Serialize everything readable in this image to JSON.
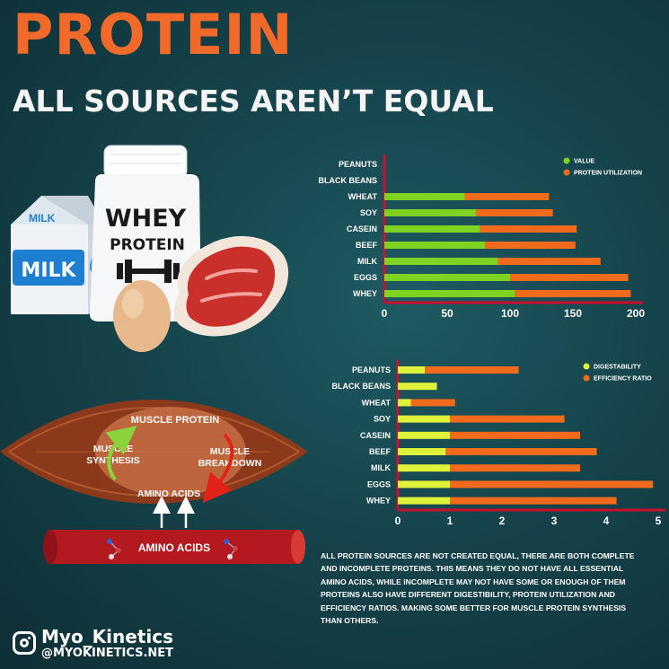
{
  "header": {
    "title": "PROTEIN",
    "subtitle": "ALL SOURCES AREN’T EQUAL"
  },
  "illustration": {
    "milk_carton_top_label": "MILK",
    "milk_carton_label": "MILK",
    "jar_text_line1": "WHEY",
    "jar_text_line2": "PROTEIN",
    "muscle_protein": "MUSCLE PROTEIN",
    "muscle_synthesis_line1": "MUSCLE",
    "muscle_synthesis_line2": "SYNTHESIS",
    "muscle_breakdown_line1": "MUSCLE",
    "muscle_breakdown_line2": "BREAKDOWN",
    "amino_acids_muscle": "AMINO ACIDS",
    "amino_acids_vessel": "AMINO ACIDS"
  },
  "description": "ALL PROTEIN SOURCES ARE NOT CREATED EQUAL, THERE ARE BOTH COMPLETE\nAND INCOMPLETE PROTEINS. THIS MEANS THEY DO NOT HAVE ALL ESSENTIAL\nAMINO ACIDS, WHILE INCOMPLETE MAY NOT HAVE SOME OR ENOUGH OF  THEM\nPROTEINS ALSO HAVE DIFFERENT DIGESTIBILITY, PROTEIN UTILIZATION  AND\nEFFICIENCY RATIOS. MAKING SOME BETTER FOR MUSCLE PROTEIN  SYNTHESIS\nTHAN OTHERS.",
  "brand": {
    "name": "Myo_Kinetics",
    "handle": "@MYOKINETICS.NET"
  },
  "colors": {
    "title_orange": "#f26a2a",
    "bar_green": "#7ed321",
    "bar_yellow": "#dff23a",
    "bar_orange": "#f26a1b",
    "axis_red": "#c8102e",
    "background": "#16444c"
  },
  "chart_data": [
    {
      "type": "bar",
      "orientation": "horizontal",
      "stacked": true,
      "categories": [
        "PEANUTS",
        "BLACK BEANS",
        "WHEAT",
        "SOY",
        "CASEIN",
        "BEEF",
        "MILK",
        "EGGS",
        "WHEY"
      ],
      "series": [
        {
          "name": "VALUE",
          "color": "#7ed321",
          "values": [
            0,
            0,
            64,
            73,
            76,
            80,
            90,
            100,
            104
          ]
        },
        {
          "name": "PROTEIN UTILIZATION",
          "color": "#f26a1b",
          "values": [
            0,
            0,
            67,
            61,
            77,
            72,
            82,
            94,
            92
          ]
        }
      ],
      "xlim": [
        0,
        200
      ],
      "xticks": [
        0,
        50,
        100,
        150,
        200
      ],
      "grid": false,
      "legend": "top-right"
    },
    {
      "type": "bar",
      "orientation": "horizontal",
      "stacked": true,
      "categories": [
        "PEANUTS",
        "BLACK BEANS",
        "WHEAT",
        "SOY",
        "CASEIN",
        "BEEF",
        "MILK",
        "EGGS",
        "WHEY"
      ],
      "series": [
        {
          "name": "DIGESTABILITY",
          "color": "#dff23a",
          "values": [
            0.52,
            0.75,
            0.25,
            1.0,
            1.0,
            0.92,
            1.0,
            1.0,
            1.0
          ]
        },
        {
          "name": "EFFICIENCY RATIO",
          "color": "#f26a1b",
          "values": [
            1.8,
            0,
            0.85,
            2.2,
            2.5,
            2.9,
            2.5,
            3.9,
            3.2
          ]
        }
      ],
      "xlim": [
        0,
        5
      ],
      "xticks": [
        0,
        1,
        2,
        3,
        4,
        5
      ],
      "grid": false,
      "legend": "top-right"
    }
  ]
}
